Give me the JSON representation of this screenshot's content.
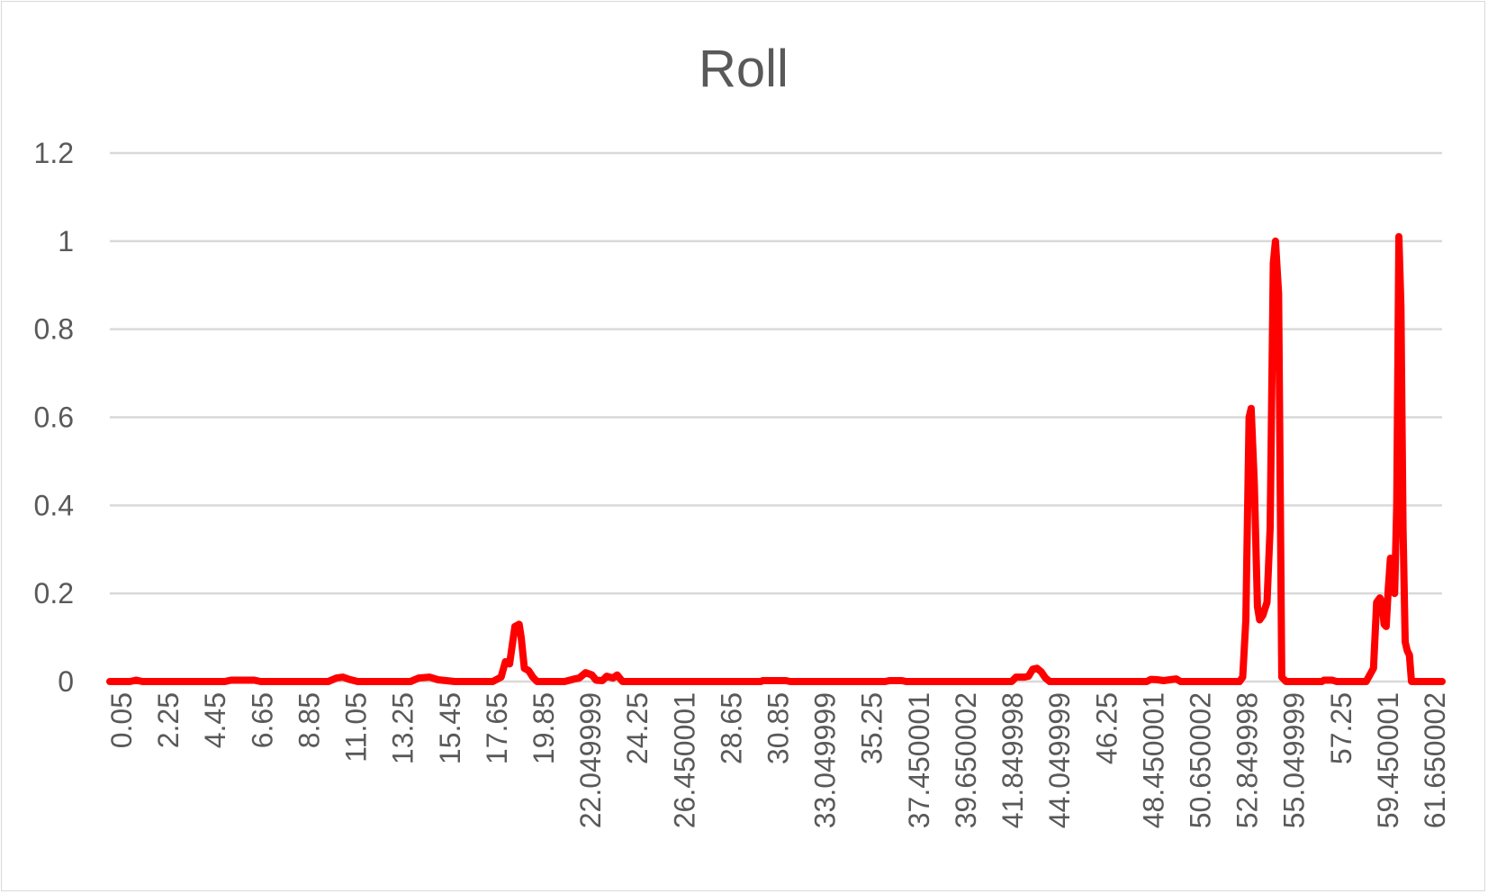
{
  "chart_data": {
    "type": "line",
    "title": "Roll",
    "xlabel": "",
    "ylabel": "",
    "grid": true,
    "legend": "none",
    "ylim": [
      0,
      1.2
    ],
    "y_ticks": [
      "0",
      "0.2",
      "0.4",
      "0.6",
      "0.8",
      "1",
      "1.2"
    ],
    "x_tick_labels": [
      "0.05",
      "2.25",
      "4.45",
      "6.65",
      "8.85",
      "11.05",
      "13.25",
      "15.45",
      "17.65",
      "19.85",
      "22.049999",
      "24.25",
      "26.450001",
      "28.65",
      "30.85",
      "33.049999",
      "35.25",
      "37.450001",
      "39.650002",
      "41.849998",
      "44.049999",
      "46.25",
      "48.450001",
      "50.650002",
      "52.849998",
      "55.049999",
      "57.25",
      "59.450001",
      "61.650002"
    ],
    "xlim": [
      0.05,
      63.2
    ],
    "series": [
      {
        "color": "#ff0000",
        "points": [
          [
            0.05,
            0
          ],
          [
            1.0,
            0
          ],
          [
            1.3,
            0.003
          ],
          [
            1.6,
            0
          ],
          [
            5.5,
            0
          ],
          [
            5.8,
            0.003
          ],
          [
            6.9,
            0.003
          ],
          [
            7.2,
            0
          ],
          [
            10.4,
            0
          ],
          [
            10.8,
            0.008
          ],
          [
            11.1,
            0.01
          ],
          [
            11.4,
            0.005
          ],
          [
            11.8,
            0
          ],
          [
            14.3,
            0
          ],
          [
            14.7,
            0.008
          ],
          [
            15.2,
            0.01
          ],
          [
            15.6,
            0.004
          ],
          [
            16.0,
            0.002
          ],
          [
            16.4,
            0
          ],
          [
            18.2,
            0
          ],
          [
            18.6,
            0.01
          ],
          [
            18.8,
            0.045
          ],
          [
            19.0,
            0.04
          ],
          [
            19.25,
            0.125
          ],
          [
            19.45,
            0.13
          ],
          [
            19.55,
            0.1
          ],
          [
            19.7,
            0.03
          ],
          [
            19.9,
            0.025
          ],
          [
            20.1,
            0.01
          ],
          [
            20.3,
            0
          ],
          [
            21.6,
            0
          ],
          [
            22.0,
            0.005
          ],
          [
            22.3,
            0.008
          ],
          [
            22.6,
            0.02
          ],
          [
            22.9,
            0.015
          ],
          [
            23.1,
            0.003
          ],
          [
            23.4,
            0.002
          ],
          [
            23.6,
            0.012
          ],
          [
            23.9,
            0.008
          ],
          [
            24.1,
            0.015
          ],
          [
            24.35,
            0
          ],
          [
            30.9,
            0
          ],
          [
            31.0,
            0.002
          ],
          [
            32.1,
            0.002
          ],
          [
            32.3,
            0
          ],
          [
            36.8,
            0
          ],
          [
            37.0,
            0.002
          ],
          [
            37.6,
            0.002
          ],
          [
            37.8,
            0
          ],
          [
            42.8,
            0
          ],
          [
            43.0,
            0.01
          ],
          [
            43.4,
            0.01
          ],
          [
            43.6,
            0.012
          ],
          [
            43.8,
            0.028
          ],
          [
            44.0,
            0.03
          ],
          [
            44.2,
            0.022
          ],
          [
            44.4,
            0.008
          ],
          [
            44.6,
            0
          ],
          [
            49.2,
            0
          ],
          [
            49.4,
            0.005
          ],
          [
            49.7,
            0.004
          ],
          [
            50.0,
            0.002
          ],
          [
            50.3,
            0.004
          ],
          [
            50.6,
            0.006
          ],
          [
            50.8,
            0
          ],
          [
            53.6,
            0
          ],
          [
            53.75,
            0.01
          ],
          [
            53.9,
            0.14
          ],
          [
            54.05,
            0.6
          ],
          [
            54.15,
            0.62
          ],
          [
            54.3,
            0.45
          ],
          [
            54.45,
            0.17
          ],
          [
            54.55,
            0.14
          ],
          [
            54.7,
            0.15
          ],
          [
            54.9,
            0.18
          ],
          [
            55.05,
            0.35
          ],
          [
            55.2,
            0.95
          ],
          [
            55.3,
            1.0
          ],
          [
            55.45,
            0.88
          ],
          [
            55.6,
            0.01
          ],
          [
            55.8,
            0
          ],
          [
            57.5,
            0
          ],
          [
            57.6,
            0.003
          ],
          [
            58.0,
            0.003
          ],
          [
            58.2,
            0
          ],
          [
            59.6,
            0
          ],
          [
            59.95,
            0.03
          ],
          [
            60.1,
            0.18
          ],
          [
            60.25,
            0.19
          ],
          [
            60.35,
            0.18
          ],
          [
            60.45,
            0.13
          ],
          [
            60.55,
            0.125
          ],
          [
            60.65,
            0.21
          ],
          [
            60.75,
            0.28
          ],
          [
            60.85,
            0.24
          ],
          [
            60.95,
            0.2
          ],
          [
            61.05,
            0.4
          ],
          [
            61.15,
            1.01
          ],
          [
            61.25,
            0.85
          ],
          [
            61.35,
            0.35
          ],
          [
            61.45,
            0.09
          ],
          [
            61.55,
            0.07
          ],
          [
            61.65,
            0.06
          ],
          [
            61.75,
            0.0
          ],
          [
            63.2,
            0
          ]
        ]
      }
    ]
  }
}
